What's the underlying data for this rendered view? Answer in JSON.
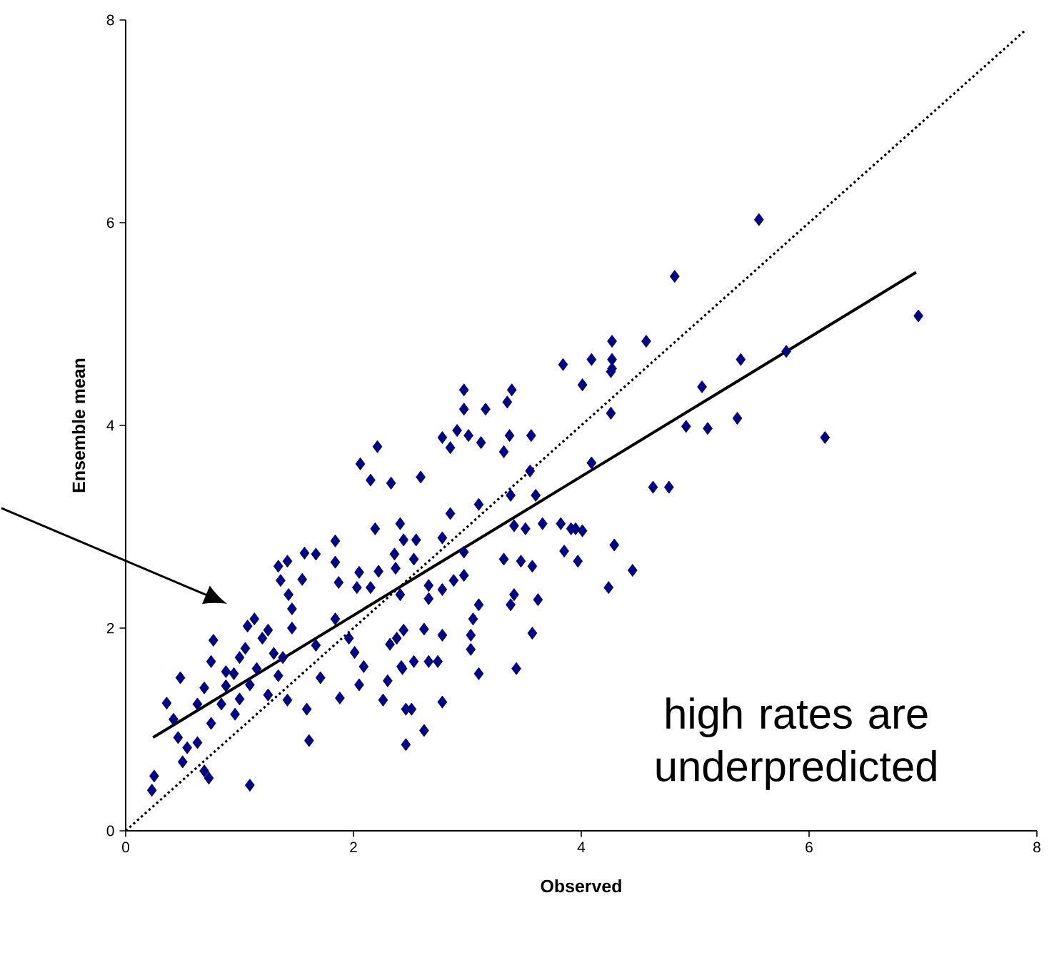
{
  "chart_data": {
    "type": "scatter",
    "xlabel": "Observed",
    "ylabel": "Ensemble mean",
    "xlim": [
      0,
      8
    ],
    "ylim": [
      0,
      8
    ],
    "xticks": [
      0,
      2,
      4,
      6,
      8
    ],
    "yticks": [
      0,
      2,
      4,
      6,
      8
    ],
    "annotations": [
      "high rates are underpredicted"
    ],
    "series": [
      {
        "marker": "diamond",
        "color": "#000080",
        "x": [
          2.21,
          2.06,
          2.15,
          2.33,
          2.19,
          2.41,
          1.84,
          1.57,
          1.67,
          1.34,
          1.42,
          1.84,
          1.55,
          1.36,
          1.87,
          2.05,
          2.37,
          1.43,
          1.46,
          1.46,
          1.13,
          1.07,
          1.25,
          0.77,
          0.75,
          0.48,
          0.69,
          0.36,
          0.88,
          1.0,
          1.09,
          1.25,
          1.34,
          1.38,
          0.84,
          0.96,
          0.75,
          0.46,
          0.54,
          0.63,
          0.5,
          0.25,
          0.23,
          0.69,
          0.73,
          1.09,
          1.61,
          1.59,
          1.42,
          1.71,
          1.88,
          2.05,
          2.09,
          2.3,
          2.26,
          2.01,
          1.96,
          1.84,
          1.67,
          2.42,
          2.46,
          2.46,
          2.38,
          0.88,
          0.63,
          0.42,
          2.97,
          3.39,
          3.35,
          4.01,
          4.26,
          2.97,
          3.16,
          2.78,
          2.91,
          3.01,
          3.12,
          3.37,
          3.56,
          3.32,
          2.85,
          2.59,
          3.55,
          3.38,
          3.1,
          3.6,
          2.85,
          3.66,
          3.82,
          3.95,
          3.41,
          3.51,
          2.44,
          2.55,
          2.78,
          2.97,
          2.53,
          2.36,
          2.22,
          3.32,
          3.47,
          3.57,
          3.85,
          3.97,
          4.29,
          4.24,
          2.66,
          2.78,
          2.88,
          2.97,
          2.03,
          2.15,
          2.41,
          2.66,
          3.1,
          3.05,
          3.41,
          3.38,
          3.62,
          2.62,
          2.44,
          2.32,
          2.78,
          3.03,
          3.03,
          3.57,
          2.53,
          2.66,
          2.74,
          2.43,
          3.1,
          3.43,
          2.78,
          2.51,
          5.56,
          4.82,
          4.27,
          4.57,
          3.84,
          4.09,
          4.27,
          4.27,
          5.4,
          5.8,
          6.96,
          4.26,
          5.06,
          4.92,
          5.11,
          5.37,
          6.14,
          4.09,
          4.63,
          4.77,
          3.91,
          4.01,
          4.45,
          1.05,
          1.2,
          1.15,
          0.95,
          1.3,
          1.0,
          2.62
        ],
        "values": [
          3.79,
          3.62,
          3.46,
          3.43,
          2.98,
          3.03,
          2.86,
          2.74,
          2.73,
          2.61,
          2.66,
          2.65,
          2.48,
          2.47,
          2.45,
          2.55,
          2.59,
          2.33,
          2.19,
          2.0,
          2.09,
          2.02,
          1.98,
          1.88,
          1.67,
          1.51,
          1.41,
          1.26,
          1.57,
          1.71,
          1.44,
          1.34,
          1.53,
          1.71,
          1.25,
          1.15,
          1.06,
          0.92,
          0.82,
          0.87,
          0.68,
          0.54,
          0.4,
          0.59,
          0.52,
          0.45,
          0.89,
          1.2,
          1.29,
          1.51,
          1.31,
          1.44,
          1.62,
          1.48,
          1.29,
          1.76,
          1.9,
          2.09,
          1.83,
          1.62,
          0.85,
          1.2,
          1.9,
          1.43,
          1.25,
          1.1,
          4.35,
          4.35,
          4.23,
          4.4,
          4.53,
          4.16,
          4.16,
          3.88,
          3.95,
          3.9,
          3.83,
          3.9,
          3.9,
          3.74,
          3.78,
          3.49,
          3.55,
          3.31,
          3.22,
          3.31,
          3.13,
          3.03,
          3.03,
          2.98,
          3.01,
          2.98,
          2.87,
          2.87,
          2.89,
          2.75,
          2.68,
          2.73,
          2.56,
          2.68,
          2.66,
          2.61,
          2.76,
          2.66,
          2.82,
          2.4,
          2.42,
          2.38,
          2.47,
          2.52,
          2.4,
          2.4,
          2.33,
          2.29,
          2.23,
          2.09,
          2.33,
          2.23,
          2.28,
          1.99,
          1.98,
          1.84,
          1.93,
          1.93,
          1.79,
          1.95,
          1.67,
          1.67,
          1.67,
          1.6,
          1.55,
          1.6,
          1.27,
          1.2,
          6.03,
          5.47,
          4.83,
          4.83,
          4.6,
          4.65,
          4.65,
          4.56,
          4.65,
          4.73,
          5.08,
          4.12,
          4.38,
          3.99,
          3.97,
          4.07,
          3.88,
          3.63,
          3.39,
          3.39,
          2.98,
          2.96,
          2.57,
          1.8,
          1.9,
          1.6,
          1.55,
          1.75,
          1.3,
          0.99
        ]
      },
      {
        "type": "line",
        "color": "#000000",
        "line_style": "solid",
        "x": [
          0.24,
          6.94
        ],
        "values": [
          0.92,
          5.51
        ]
      },
      {
        "type": "line",
        "color": "#000000",
        "line_style": "dotted",
        "x": [
          0,
          7.9
        ],
        "values": [
          0,
          7.9
        ]
      }
    ]
  }
}
